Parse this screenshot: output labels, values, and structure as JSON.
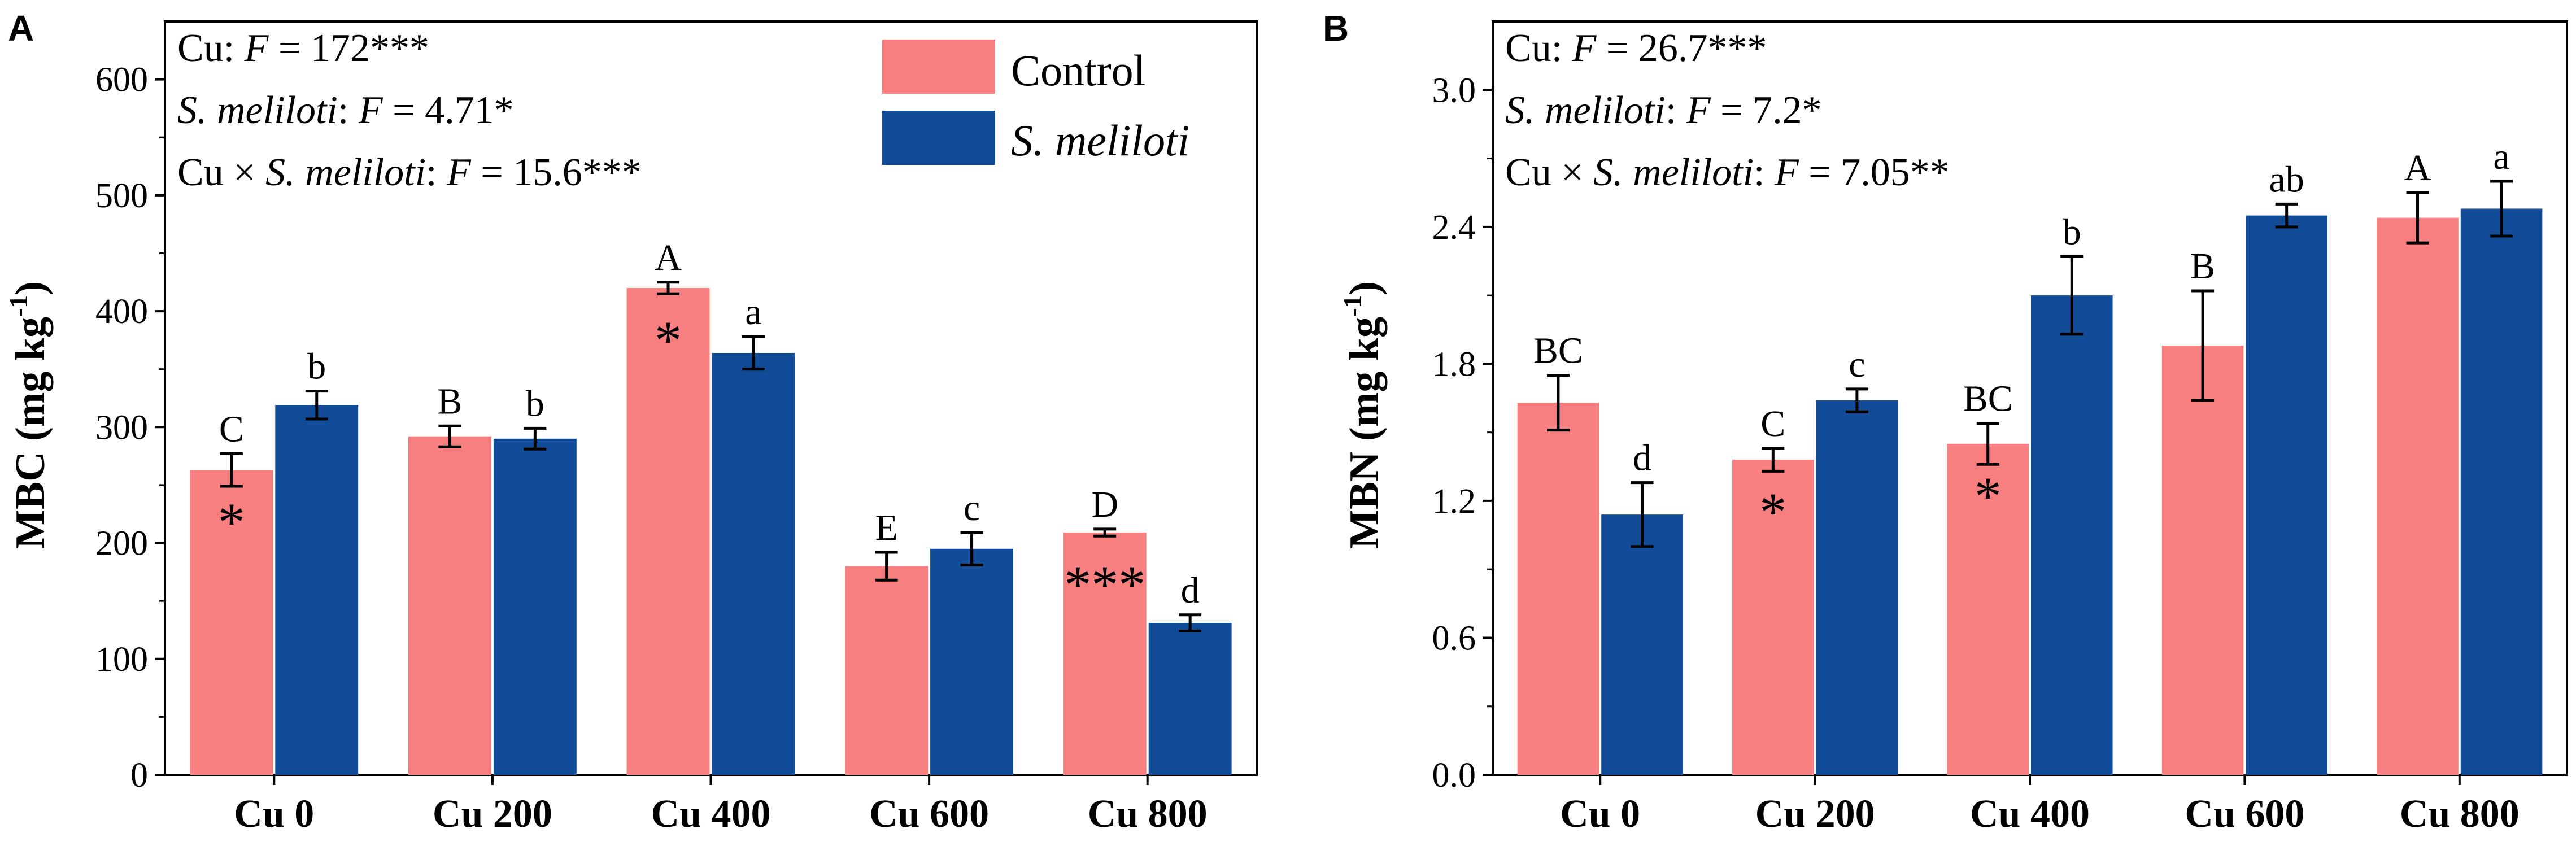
{
  "colors": {
    "control": "#F77F7F",
    "smeliloti": "#124B97",
    "axis": "#000000"
  },
  "legend": {
    "control": "Control",
    "smeliloti": "S. meliloti"
  },
  "chart_data": [
    {
      "type": "bar",
      "panel": "A",
      "ylabel": "MBC (mg kg",
      "ylabel_sup": "-1",
      "ylabel_close": ")",
      "ylim": [
        0,
        650
      ],
      "yticks": [
        "0",
        "100",
        "200",
        "300",
        "400",
        "500",
        "600"
      ],
      "categories": [
        "Cu 0",
        "Cu 200",
        "Cu 400",
        "Cu 600",
        "Cu 800"
      ],
      "series": [
        {
          "name": "Control",
          "values": [
            263,
            292,
            420,
            180,
            209
          ],
          "errors": [
            14,
            9,
            5,
            12,
            3
          ],
          "letters": [
            "C",
            "B",
            "A",
            "E",
            "D"
          ]
        },
        {
          "name": "S. meliloti",
          "values": [
            319,
            290,
            364,
            195,
            131
          ],
          "errors": [
            12,
            9,
            14,
            14,
            7
          ],
          "letters": [
            "b",
            "b",
            "a",
            "c",
            "d"
          ]
        }
      ],
      "asterisks": [
        "*",
        "",
        "*",
        "",
        "***"
      ],
      "stats": [
        {
          "prefix": "Cu: ",
          "var": "F",
          "value": " = 172***"
        },
        {
          "prefix": "S. meliloti",
          "prefix_italic": true,
          "suffix": ": ",
          "var": "F",
          "value": " = 4.71*"
        },
        {
          "prefix": "Cu × ",
          "prefix2": "S. meliloti",
          "suffix": ": ",
          "var": "F",
          "value": " = 15.6***"
        }
      ]
    },
    {
      "type": "bar",
      "panel": "B",
      "ylabel": "MBN (mg kg",
      "ylabel_sup": "-1",
      "ylabel_close": ")",
      "ylim": [
        0,
        3.3
      ],
      "yticks": [
        "0.0",
        "0.6",
        "1.2",
        "1.8",
        "2.4",
        "3.0"
      ],
      "categories": [
        "Cu 0",
        "Cu 200",
        "Cu 400",
        "Cu 600",
        "Cu 800"
      ],
      "series": [
        {
          "name": "Control",
          "values": [
            1.63,
            1.38,
            1.45,
            1.88,
            2.44
          ],
          "errors": [
            0.12,
            0.05,
            0.09,
            0.24,
            0.11
          ],
          "letters": [
            "BC",
            "C",
            "BC",
            "B",
            "A"
          ]
        },
        {
          "name": "S. meliloti",
          "values": [
            1.14,
            1.64,
            2.1,
            2.45,
            2.48
          ],
          "errors": [
            0.14,
            0.05,
            0.17,
            0.05,
            0.12
          ],
          "letters": [
            "d",
            "c",
            "b",
            "ab",
            "a"
          ]
        }
      ],
      "asterisks": [
        "",
        "*",
        "*",
        "",
        ""
      ],
      "stats": [
        {
          "prefix": "Cu: ",
          "var": "F",
          "value": " = 26.7***"
        },
        {
          "prefix": "S. meliloti",
          "prefix_italic": true,
          "suffix": ": ",
          "var": "F",
          "value": " = 7.2*"
        },
        {
          "prefix": "Cu × ",
          "prefix2": "S. meliloti",
          "suffix": ": ",
          "var": "F",
          "value": " = 7.05**"
        }
      ]
    }
  ]
}
